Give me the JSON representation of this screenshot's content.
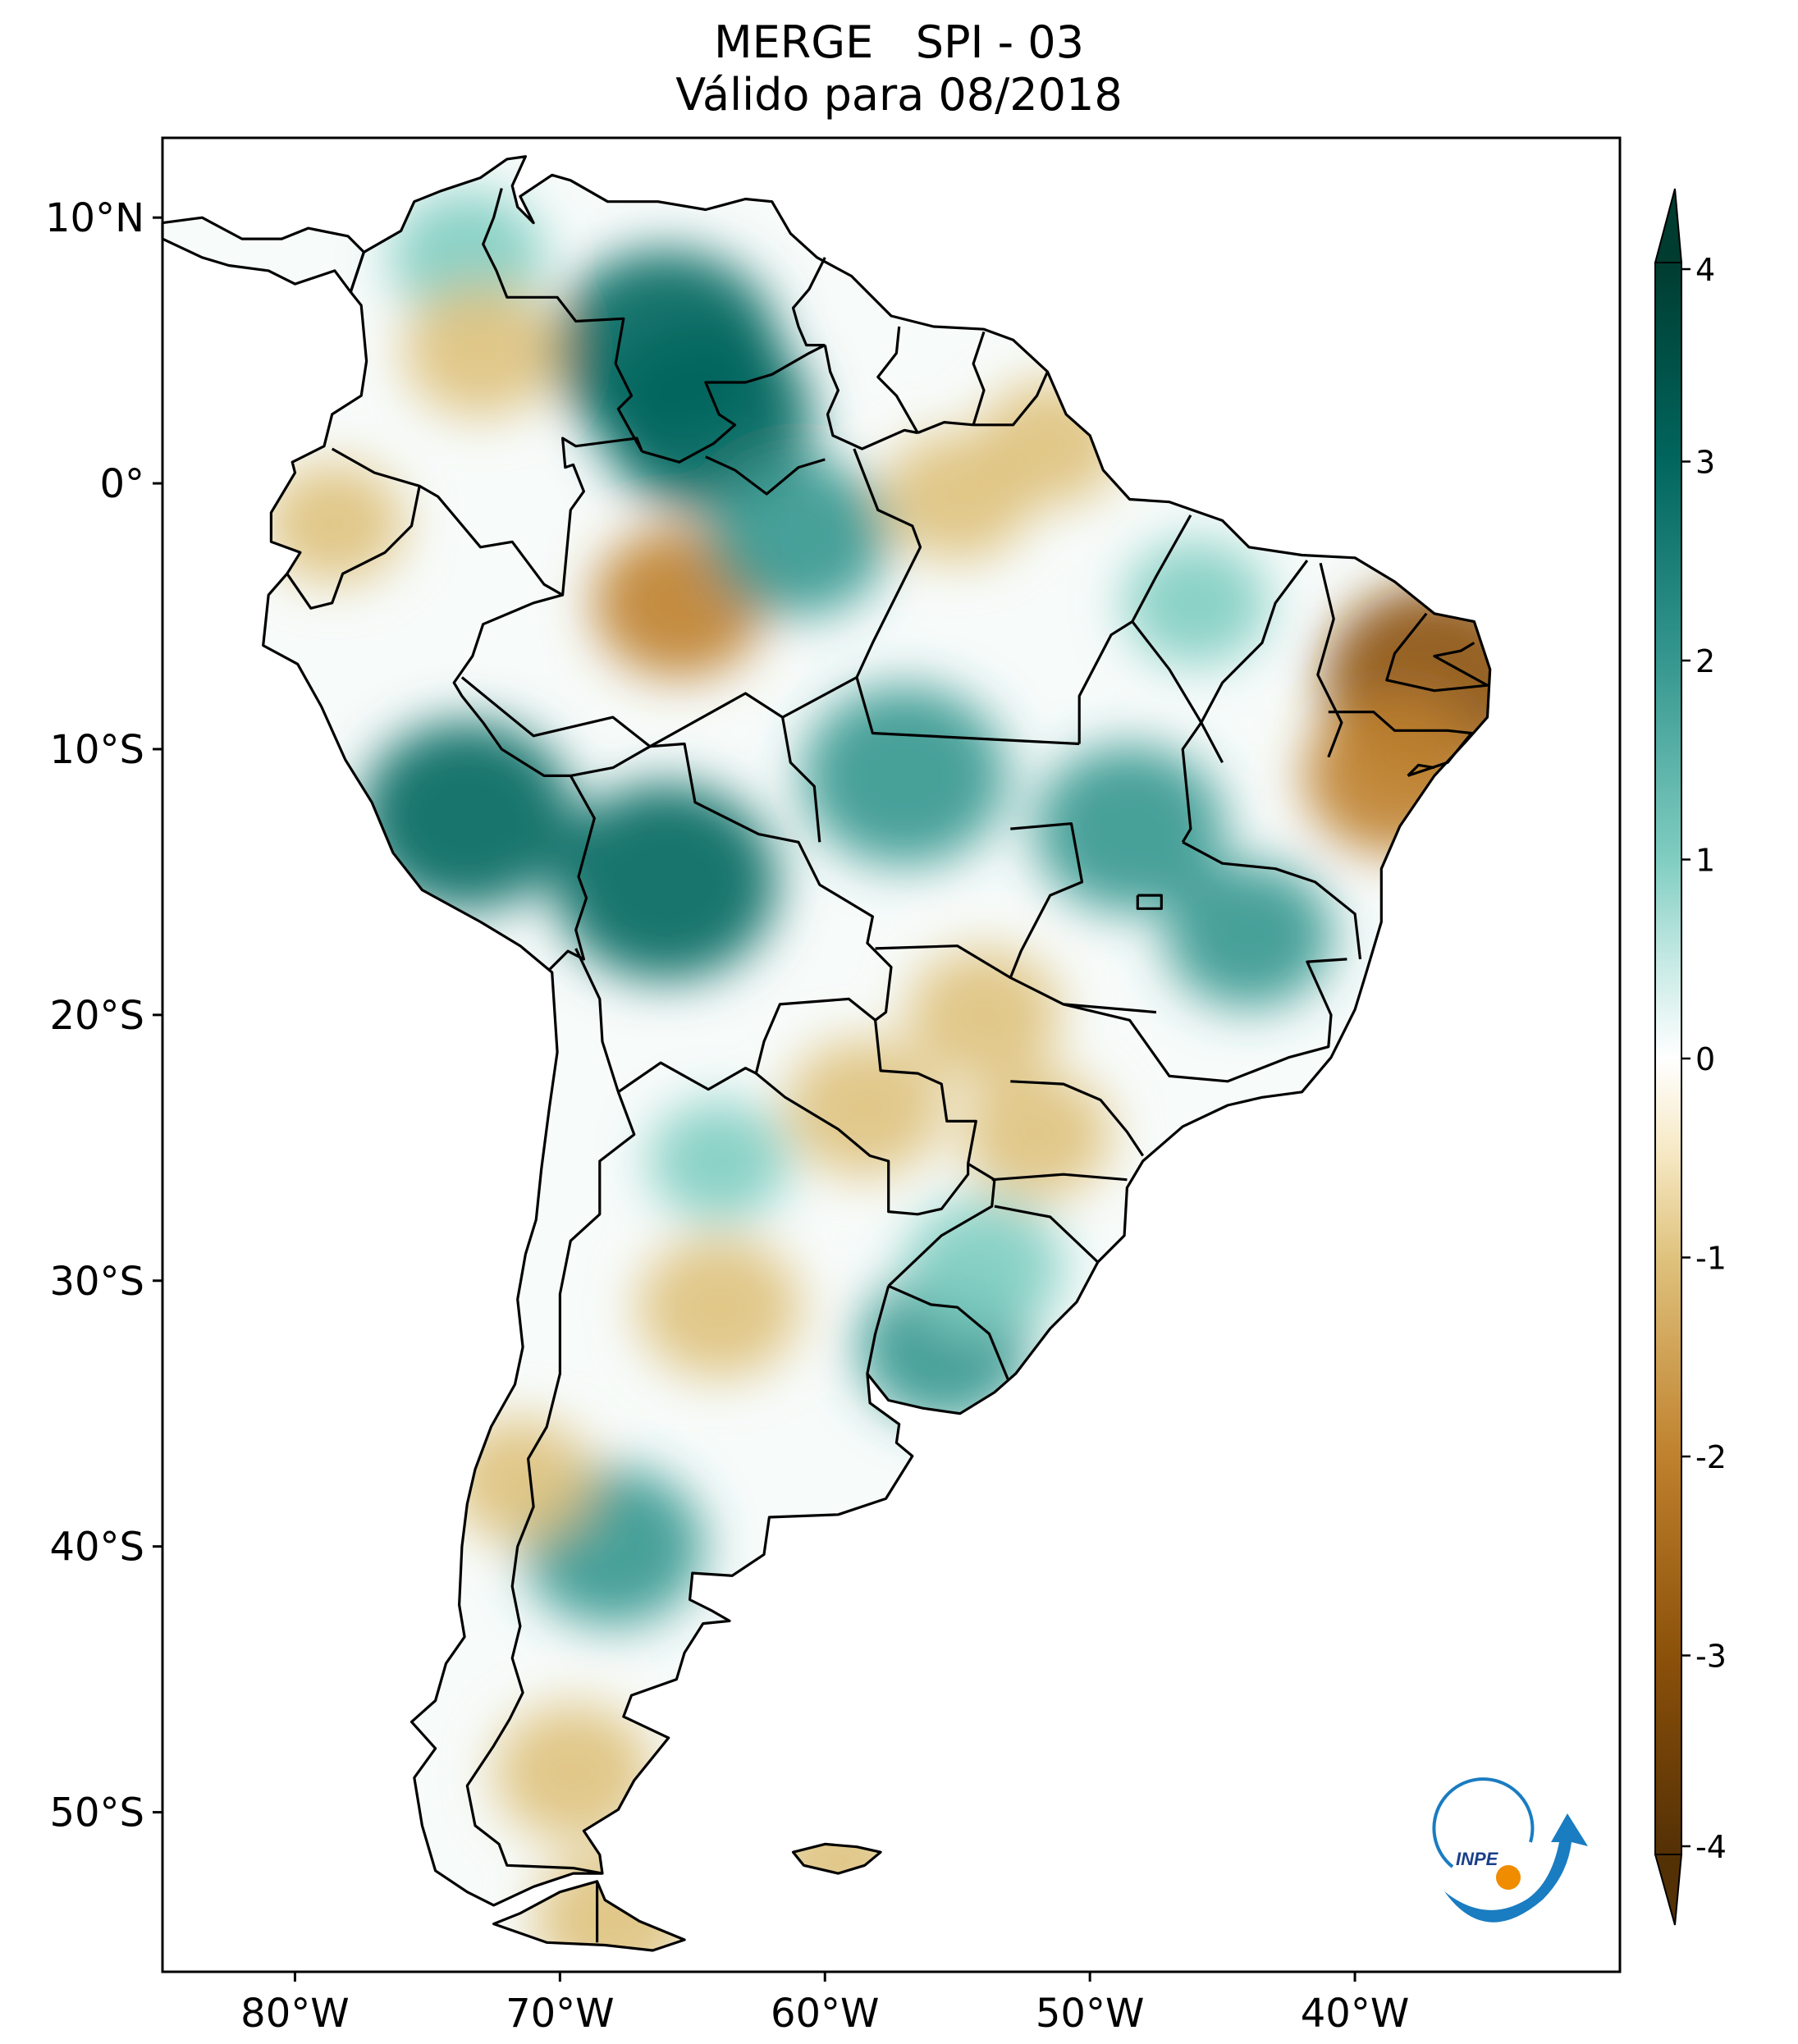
{
  "title": {
    "line1": "MERGE   SPI - 03",
    "line2": "Válido para 08/2018"
  },
  "x_axis": {
    "ticks": [
      {
        "lon": -80,
        "label": "80°W"
      },
      {
        "lon": -70,
        "label": "70°W"
      },
      {
        "lon": -60,
        "label": "60°W"
      },
      {
        "lon": -50,
        "label": "50°W"
      },
      {
        "lon": -40,
        "label": "40°W"
      }
    ]
  },
  "y_axis": {
    "ticks": [
      {
        "lat": 10,
        "label": "10°N"
      },
      {
        "lat": 0,
        "label": "0°"
      },
      {
        "lat": -10,
        "label": "10°S"
      },
      {
        "lat": -20,
        "label": "20°S"
      },
      {
        "lat": -30,
        "label": "30°S"
      },
      {
        "lat": -40,
        "label": "40°S"
      },
      {
        "lat": -50,
        "label": "50°S"
      }
    ]
  },
  "map_extent": {
    "lon_min": -85,
    "lon_max": -30,
    "lat_min": -56,
    "lat_max": 13
  },
  "colorbar": {
    "min": -4,
    "max": 4,
    "extend": "both",
    "ticks": [
      {
        "value": 4,
        "label": "4"
      },
      {
        "value": 3,
        "label": "3"
      },
      {
        "value": 2,
        "label": "2"
      },
      {
        "value": 1,
        "label": "1"
      },
      {
        "value": 0,
        "label": "0"
      },
      {
        "value": -1,
        "label": "-1"
      },
      {
        "value": -2,
        "label": "-2"
      },
      {
        "value": -3,
        "label": "-3"
      },
      {
        "value": -4,
        "label": "-4"
      }
    ],
    "colors": {
      "neg4": "#543005",
      "neg3": "#8c510a",
      "neg2": "#bf812d",
      "neg1": "#dfc27d",
      "neg05": "#f6e8c3",
      "zero": "#ffffff",
      "pos05": "#c7eae5",
      "pos1": "#80cdc1",
      "pos2": "#35978f",
      "pos3": "#01665e",
      "pos4": "#003c30"
    }
  },
  "logo": {
    "text": "INPE"
  },
  "spi_regions": [
    {
      "name": "northern-colombia-wet",
      "lon": -73.5,
      "lat": 8.5,
      "value": 1.2
    },
    {
      "name": "venezuela-wet",
      "lon": -66,
      "lat": 5,
      "value": 2.8
    },
    {
      "name": "southern-venezuela-wet",
      "lon": -64.5,
      "lat": 2.5,
      "value": 2.5
    },
    {
      "name": "colombia-dry",
      "lon": -73,
      "lat": 5,
      "value": -1.2
    },
    {
      "name": "ecuador-dry",
      "lon": -78.5,
      "lat": -1.5,
      "value": -0.9
    },
    {
      "name": "western-amazonas-dry",
      "lon": -65.5,
      "lat": -4.5,
      "value": -1.6
    },
    {
      "name": "central-amazonas-wet",
      "lon": -61,
      "lat": -2,
      "value": 1.8
    },
    {
      "name": "para-dry",
      "lon": -55,
      "lat": -0.5,
      "value": -1.1
    },
    {
      "name": "amapa-dry",
      "lon": -51.5,
      "lat": 1.5,
      "value": -1.0
    },
    {
      "name": "maranhao-wet",
      "lon": -46,
      "lat": -4.5,
      "value": 1.0
    },
    {
      "name": "northeast-brazil-dry",
      "lon": -37,
      "lat": -7.5,
      "value": -2.7
    },
    {
      "name": "bahia-dry",
      "lon": -38.5,
      "lat": -11,
      "value": -1.8
    },
    {
      "name": "peru-wet",
      "lon": -73.5,
      "lat": -12.5,
      "value": 2.5
    },
    {
      "name": "bolivia-wet",
      "lon": -66,
      "lat": -15,
      "value": 2.7
    },
    {
      "name": "mato-grosso-wet",
      "lon": -57,
      "lat": -11,
      "value": 2.3
    },
    {
      "name": "goias-wet",
      "lon": -48.5,
      "lat": -13,
      "value": 2.0
    },
    {
      "name": "minas-gerais-wet",
      "lon": -44,
      "lat": -17,
      "value": 1.5
    },
    {
      "name": "mato-grosso-do-sul-dry",
      "lon": -54,
      "lat": -20,
      "value": -1.2
    },
    {
      "name": "paraguay-dry",
      "lon": -58.5,
      "lat": -23.5,
      "value": -1.3
    },
    {
      "name": "parana-dry",
      "lon": -52,
      "lat": -24.5,
      "value": -1.1
    },
    {
      "name": "uruguay-wet",
      "lon": -55.5,
      "lat": -32.5,
      "value": 1.6
    },
    {
      "name": "rio-grande-do-sul-wet",
      "lon": -54,
      "lat": -29.5,
      "value": 1.3
    },
    {
      "name": "central-argentina-dry",
      "lon": -64,
      "lat": -31,
      "value": -1.4
    },
    {
      "name": "northern-argentina-wet",
      "lon": -64,
      "lat": -25.5,
      "value": 0.9
    },
    {
      "name": "northern-patagonia-wet",
      "lon": -68,
      "lat": -40,
      "value": 1.8
    },
    {
      "name": "chile-central-dry",
      "lon": -71.5,
      "lat": -37.5,
      "value": -1.0
    },
    {
      "name": "southern-patagonia-dry",
      "lon": -69.5,
      "lat": -48.5,
      "value": -1.3
    },
    {
      "name": "tierra-del-fuego-dry",
      "lon": -68,
      "lat": -54,
      "value": -1.3
    },
    {
      "name": "falklands-dry",
      "lon": -59.5,
      "lat": -51.8,
      "value": -0.9
    }
  ]
}
